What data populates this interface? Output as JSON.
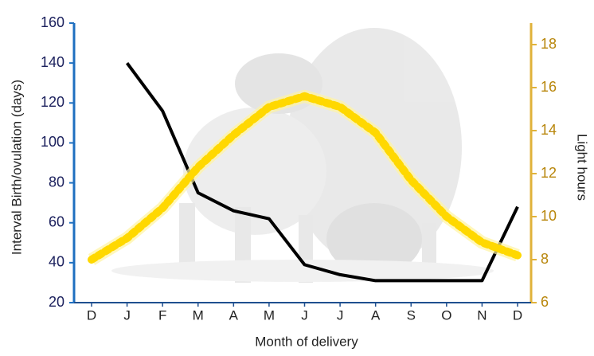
{
  "chart_data": {
    "type": "line",
    "x_label": "Month of delivery",
    "y_label": "Interval Birth/ovulation (days)",
    "y2_label": "Light hours",
    "categories": [
      "D",
      "J",
      "F",
      "M",
      "A",
      "M",
      "J",
      "J",
      "A",
      "S",
      "O",
      "N",
      "D"
    ],
    "ylim": [
      20,
      160
    ],
    "yticks": [
      20,
      40,
      60,
      80,
      100,
      120,
      140,
      160
    ],
    "y2lim": [
      6,
      19
    ],
    "y2ticks": [
      6,
      8,
      10,
      12,
      14,
      16,
      18
    ],
    "y_axis_color": "#1f6fc0",
    "y2_axis_color": "#e0b23a",
    "series": [
      {
        "color": "#000000",
        "values": [
          null,
          140,
          116,
          75,
          66,
          62,
          39,
          34,
          31,
          31,
          31,
          31,
          68
        ]
      },
      {
        "color": "#ffd800",
        "axis": "y2",
        "values": [
          8,
          9,
          10.4,
          12.3,
          13.8,
          15.1,
          15.6,
          15.1,
          13.9,
          11.7,
          10,
          8.8,
          8.2
        ]
      }
    ]
  }
}
